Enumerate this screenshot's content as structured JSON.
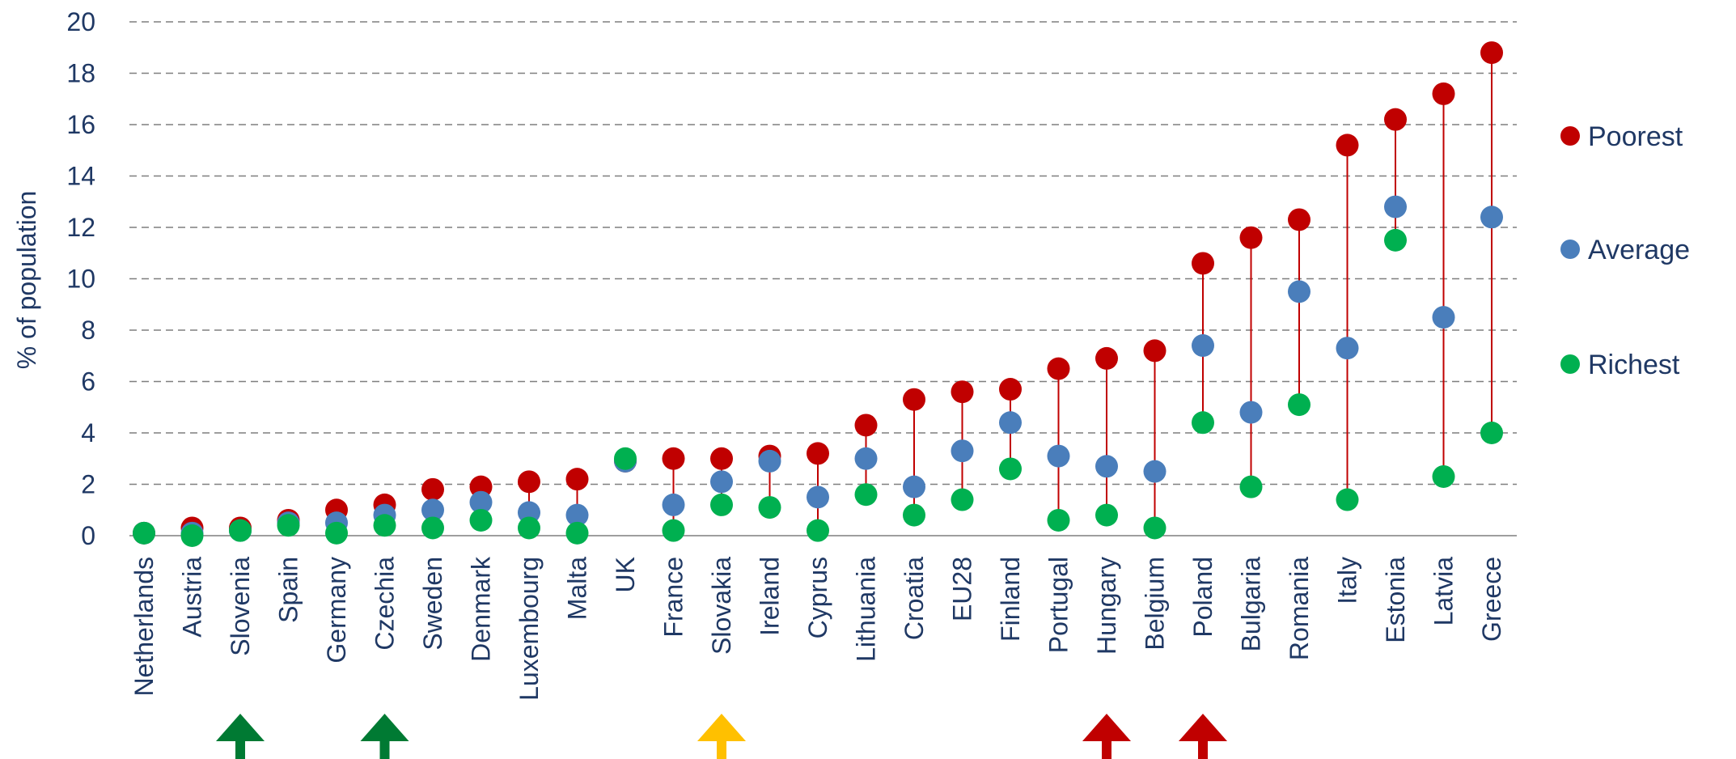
{
  "chart_data": {
    "type": "scatter",
    "title": "",
    "xlabel": "",
    "ylabel": "% of population",
    "ylim": [
      0,
      20
    ],
    "yticks": [
      0,
      2,
      4,
      6,
      8,
      10,
      12,
      14,
      16,
      18,
      20
    ],
    "grid": true,
    "legend_position": "right",
    "categories": [
      "Netherlands",
      "Austria",
      "Slovenia",
      "Spain",
      "Germany",
      "Czechia",
      "Sweden",
      "Denmark",
      "Luxembourg",
      "Malta",
      "UK",
      "France",
      "Slovakia",
      "Ireland",
      "Cyprus",
      "Lithuania",
      "Croatia",
      "EU28",
      "Finland",
      "Portugal",
      "Hungary",
      "Belgium",
      "Poland",
      "Bulgaria",
      "Romania",
      "Italy",
      "Estonia",
      "Latvia",
      "Greece"
    ],
    "series": [
      {
        "name": "Poorest",
        "color": "#c00000",
        "values": [
          0.1,
          0.3,
          0.3,
          0.6,
          1.0,
          1.2,
          1.8,
          1.9,
          2.1,
          2.2,
          2.9,
          3.0,
          3.0,
          3.1,
          3.2,
          4.3,
          5.3,
          5.6,
          5.7,
          6.5,
          6.9,
          7.2,
          10.6,
          11.6,
          12.3,
          15.2,
          16.2,
          17.2,
          18.8
        ]
      },
      {
        "name": "Average",
        "color": "#4a7ebb",
        "values": [
          0.1,
          0.1,
          0.2,
          0.5,
          0.5,
          0.8,
          1.0,
          1.3,
          0.9,
          0.8,
          2.9,
          1.2,
          2.1,
          2.9,
          1.5,
          3.0,
          1.9,
          3.3,
          4.4,
          3.1,
          2.7,
          2.5,
          7.4,
          4.8,
          9.5,
          7.3,
          12.8,
          8.5,
          12.4
        ]
      },
      {
        "name": "Richest",
        "color": "#00b050",
        "values": [
          0.1,
          0.0,
          0.2,
          0.4,
          0.1,
          0.4,
          0.3,
          0.6,
          0.3,
          0.1,
          3.0,
          0.2,
          1.2,
          1.1,
          0.2,
          1.6,
          0.8,
          1.4,
          2.6,
          0.6,
          0.8,
          0.3,
          4.4,
          1.9,
          5.1,
          1.4,
          11.5,
          2.3,
          4.0
        ]
      }
    ],
    "markers": [
      {
        "category": "Slovenia",
        "direction": "up",
        "color": "#007a33"
      },
      {
        "category": "Czechia",
        "direction": "up",
        "color": "#007a33"
      },
      {
        "category": "Slovakia",
        "direction": "up",
        "color": "#ffc000"
      },
      {
        "category": "Hungary",
        "direction": "up",
        "color": "#c00000"
      },
      {
        "category": "Poland",
        "direction": "up",
        "color": "#c00000"
      }
    ]
  }
}
